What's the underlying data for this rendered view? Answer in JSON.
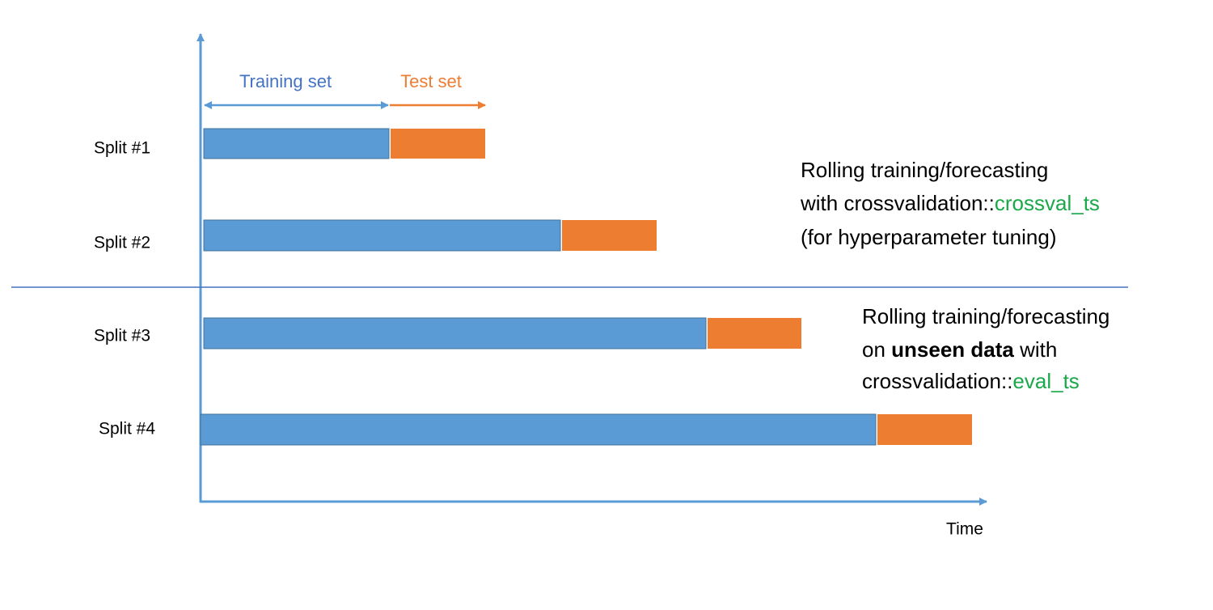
{
  "legend": {
    "training": "Training set",
    "test": "Test set"
  },
  "axis": {
    "x_label": "Time"
  },
  "splits": [
    {
      "label": "Split #1"
    },
    {
      "label": "Split #2"
    },
    {
      "label": "Split #3"
    },
    {
      "label": "Split #4"
    }
  ],
  "notes": [
    {
      "lines": [
        {
          "parts": [
            "Rolling training/forecasting"
          ]
        },
        {
          "parts": [
            "with crossvalidation::",
            "crossval_ts"
          ]
        },
        {
          "parts": [
            "(for hyperparameter tuning)"
          ]
        }
      ]
    },
    {
      "lines": [
        {
          "parts": [
            "Rolling training/forecasting"
          ]
        },
        {
          "parts": [
            "on ",
            "unseen data",
            " with"
          ]
        },
        {
          "parts": [
            "crossvalidation::",
            "eval_ts"
          ]
        }
      ]
    }
  ]
}
